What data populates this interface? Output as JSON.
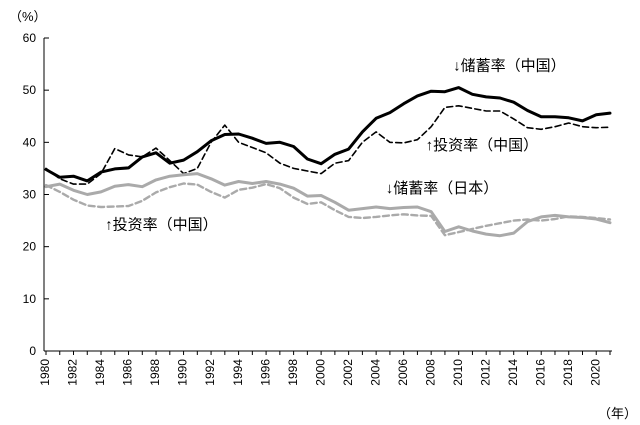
{
  "chart_data": {
    "type": "line",
    "y_unit": "（%）",
    "x_unit": "（年）",
    "ylim": [
      0,
      60
    ],
    "yticks": [
      0,
      10,
      20,
      30,
      40,
      50,
      60
    ],
    "xlim": [
      1980,
      2021
    ],
    "xticks": [
      "1980",
      "1982",
      "1984",
      "1986",
      "1988",
      "1990",
      "1992",
      "1994",
      "1996",
      "1998",
      "2000",
      "2002",
      "2004",
      "2006",
      "2008",
      "2010",
      "2012",
      "2014",
      "2016",
      "2018",
      "2020"
    ],
    "grid": false,
    "x": [
      1980,
      1981,
      1982,
      1983,
      1984,
      1985,
      1986,
      1987,
      1988,
      1989,
      1990,
      1991,
      1992,
      1993,
      1994,
      1995,
      1996,
      1997,
      1998,
      1999,
      2000,
      2001,
      2002,
      2003,
      2004,
      2005,
      2006,
      2007,
      2008,
      2009,
      2010,
      2011,
      2012,
      2013,
      2014,
      2015,
      2016,
      2017,
      2018,
      2019,
      2020,
      2021
    ],
    "series": [
      {
        "name": "储蓄率（中国）",
        "color": "#000000",
        "style": "solid",
        "width": 3,
        "values": [
          34.8,
          33.3,
          33.5,
          32.6,
          34.3,
          34.9,
          35.1,
          37.2,
          38.0,
          36.0,
          36.6,
          38.2,
          40.3,
          41.5,
          41.6,
          40.8,
          39.8,
          40.0,
          39.2,
          36.8,
          35.9,
          37.7,
          38.7,
          42.0,
          44.6,
          45.7,
          47.4,
          48.9,
          49.8,
          49.7,
          50.5,
          49.2,
          48.7,
          48.5,
          47.7,
          46.1,
          44.9,
          44.9,
          44.7,
          44.1,
          45.3,
          45.6
        ]
      },
      {
        "name": "投资率（中国）",
        "color": "#000000",
        "style": "dashed",
        "width": 1.6,
        "values": [
          35.0,
          33.0,
          32.0,
          32.0,
          34.0,
          38.8,
          37.6,
          37.2,
          38.9,
          36.5,
          34.0,
          35.0,
          40.0,
          43.3,
          40.0,
          39.0,
          38.0,
          36.0,
          35.0,
          34.5,
          34.0,
          36.0,
          36.5,
          40.0,
          42.0,
          40.0,
          39.9,
          40.5,
          43.0,
          46.7,
          47.0,
          46.5,
          46.0,
          46.0,
          44.5,
          42.8,
          42.5,
          43.0,
          43.7,
          43.0,
          42.8,
          42.9
        ]
      },
      {
        "name": "储蓄率（日本）",
        "color": "#aaaaaa",
        "style": "solid",
        "width": 3,
        "values": [
          31.5,
          32.0,
          30.8,
          30.0,
          30.5,
          31.6,
          31.9,
          31.5,
          32.8,
          33.5,
          33.8,
          34.0,
          33.0,
          31.8,
          32.5,
          32.1,
          32.5,
          32.0,
          31.2,
          29.7,
          29.8,
          28.5,
          27.0,
          27.3,
          27.6,
          27.3,
          27.5,
          27.6,
          26.7,
          22.9,
          23.8,
          23.0,
          22.4,
          22.1,
          22.6,
          24.8,
          25.7,
          26.0,
          25.7,
          25.6,
          25.3,
          24.6
        ]
      },
      {
        "name": "投资率（中国）",
        "color": "#aaaaaa",
        "style": "dashed",
        "width": 2.4,
        "values": [
          31.8,
          30.5,
          29.0,
          27.9,
          27.6,
          27.7,
          27.8,
          28.8,
          30.4,
          31.4,
          32.1,
          31.9,
          30.5,
          29.4,
          30.9,
          31.3,
          32.0,
          31.2,
          29.4,
          28.2,
          28.5,
          27.0,
          25.7,
          25.5,
          25.7,
          26.0,
          26.2,
          26.0,
          25.9,
          22.2,
          22.8,
          23.4,
          24.0,
          24.5,
          25.0,
          25.2,
          25.0,
          25.3,
          25.8,
          25.7,
          25.5,
          25.2
        ]
      }
    ],
    "annotations": [
      {
        "text": "↓储蓄率（中国）",
        "x": 2009.6,
        "y": 53.8,
        "anchor": "start"
      },
      {
        "text": "↑投资率（中国）",
        "x": 2007.6,
        "y": 38.5,
        "anchor": "start"
      },
      {
        "text": "↓储蓄率（日本）",
        "x": 2004.7,
        "y": 30.3,
        "anchor": "start"
      },
      {
        "text": "↑投资率（中国）",
        "x": 1984.3,
        "y": 23.3,
        "anchor": "start"
      }
    ]
  }
}
